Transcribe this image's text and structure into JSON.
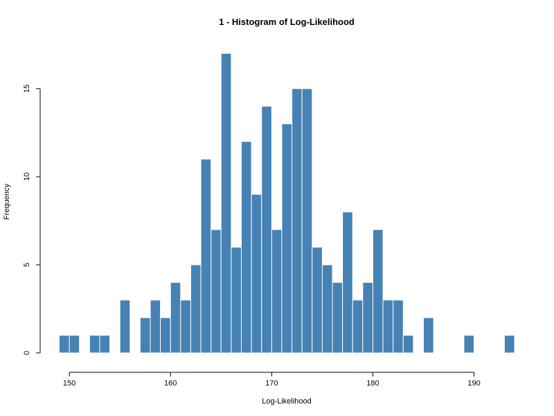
{
  "chart_data": {
    "type": "bar",
    "title": "1 - Histogram of Log-Likelihood",
    "xlabel": "Log-Likelihood",
    "ylabel": "Frequency",
    "bin_width": 1,
    "bins_start": [
      149,
      150,
      151,
      152,
      153,
      154,
      155,
      156,
      157,
      158,
      159,
      160,
      161,
      162,
      163,
      164,
      165,
      166,
      167,
      168,
      169,
      170,
      171,
      172,
      173,
      174,
      175,
      176,
      177,
      178,
      179,
      180,
      181,
      182,
      183,
      184,
      185,
      186,
      187,
      188,
      189,
      190,
      191,
      192,
      193
    ],
    "values": [
      1,
      1,
      0,
      1,
      1,
      0,
      3,
      0,
      2,
      3,
      2,
      4,
      3,
      5,
      11,
      7,
      17,
      6,
      12,
      9,
      14,
      7,
      13,
      15,
      15,
      6,
      5,
      4,
      8,
      3,
      4,
      7,
      3,
      3,
      1,
      0,
      2,
      0,
      0,
      0,
      1,
      0,
      0,
      0,
      1
    ],
    "xlim": [
      149,
      194
    ],
    "ylim": [
      0,
      17
    ],
    "x_ticks": [
      150,
      160,
      170,
      180,
      190
    ],
    "y_ticks": [
      0,
      5,
      10,
      15
    ],
    "bar_color": "#4682b4",
    "bar_border_color": "#ffffff",
    "grid": false
  }
}
